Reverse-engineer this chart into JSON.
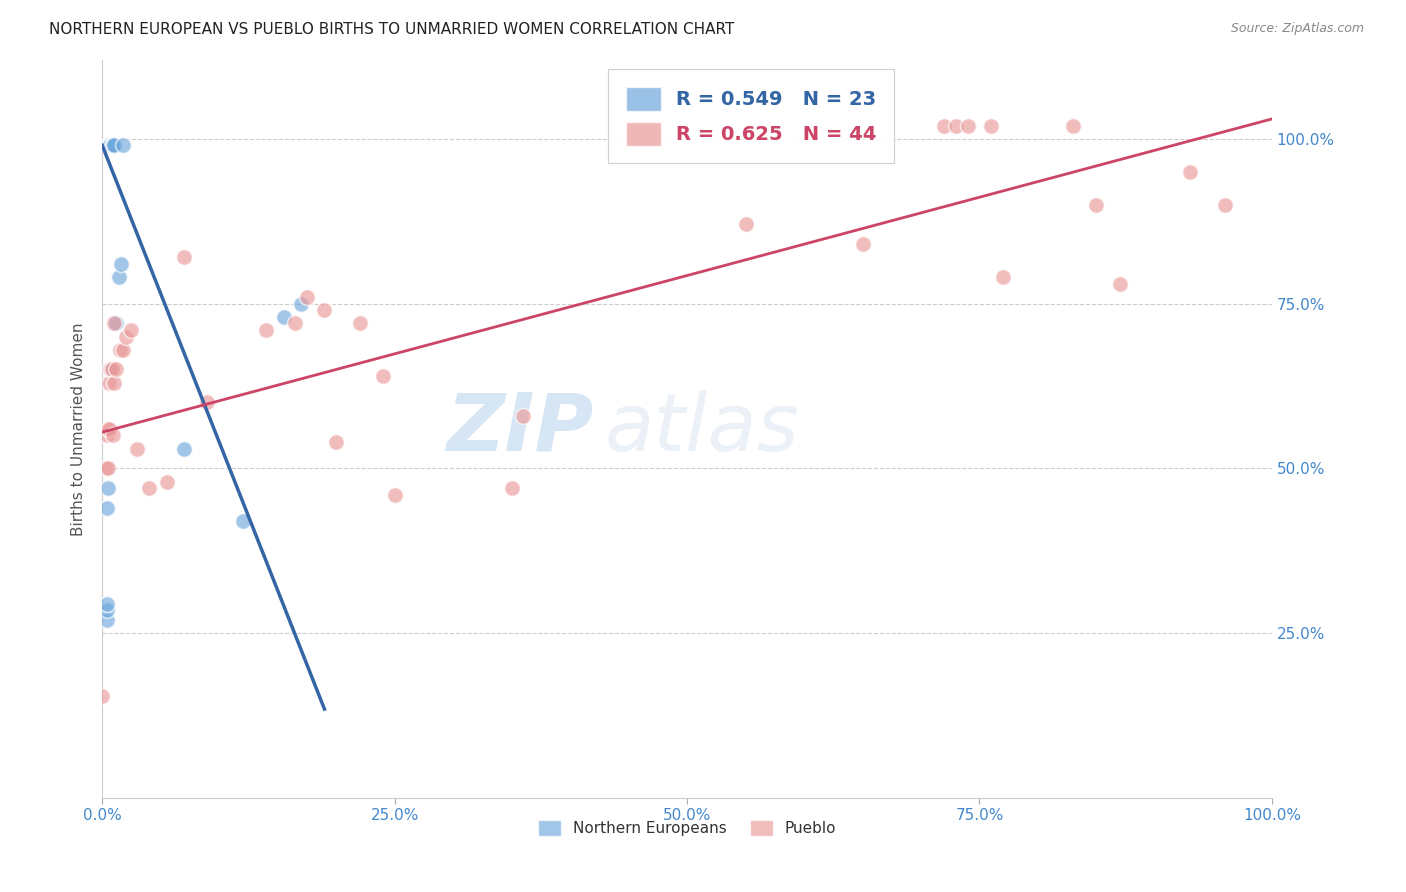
{
  "title": "NORTHERN EUROPEAN VS PUEBLO BIRTHS TO UNMARRIED WOMEN CORRELATION CHART",
  "source": "Source: ZipAtlas.com",
  "ylabel": "Births to Unmarried Women",
  "watermark": "ZIPatlas",
  "blue_label": "Northern Europeans",
  "pink_label": "Pueblo",
  "blue_R": 0.549,
  "blue_N": 23,
  "pink_R": 0.625,
  "pink_N": 44,
  "xlim": [
    0,
    1.0
  ],
  "ylim": [
    0,
    1.12
  ],
  "xticks": [
    0.0,
    0.25,
    0.5,
    0.75,
    1.0
  ],
  "xtick_labels": [
    "0.0%",
    "25.0%",
    "50.0%",
    "75.0%",
    "100.0%"
  ],
  "ytick_labels": [
    "25.0%",
    "50.0%",
    "75.0%",
    "100.0%"
  ],
  "yticks": [
    0.25,
    0.5,
    0.75,
    1.0
  ],
  "blue_color": "#6fa8dc",
  "pink_color": "#ea9999",
  "blue_line_color": "#3465a4",
  "pink_line_color": "#cc4466",
  "grid_color": "#cccccc",
  "axis_label_color": "#4488cc",
  "blue_x": [
    0.004,
    0.004,
    0.004,
    0.004,
    0.005,
    0.005,
    0.006,
    0.006,
    0.006,
    0.007,
    0.007,
    0.008,
    0.008,
    0.009,
    0.01,
    0.012,
    0.014,
    0.016,
    0.018,
    0.07,
    0.12,
    0.155,
    0.17
  ],
  "blue_y": [
    0.27,
    0.285,
    0.295,
    0.44,
    0.47,
    0.99,
    0.99,
    0.99,
    0.99,
    0.99,
    0.99,
    0.99,
    0.65,
    0.99,
    0.99,
    0.72,
    0.79,
    0.81,
    0.99,
    0.53,
    0.42,
    0.73,
    0.75
  ],
  "pink_x": [
    0.0,
    0.003,
    0.004,
    0.005,
    0.005,
    0.006,
    0.006,
    0.007,
    0.008,
    0.009,
    0.01,
    0.01,
    0.012,
    0.015,
    0.018,
    0.02,
    0.025,
    0.03,
    0.04,
    0.055,
    0.07,
    0.09,
    0.14,
    0.165,
    0.175,
    0.19,
    0.2,
    0.22,
    0.24,
    0.25,
    0.35,
    0.36,
    0.55,
    0.65,
    0.72,
    0.73,
    0.74,
    0.76,
    0.77,
    0.83,
    0.85,
    0.87,
    0.93,
    0.96
  ],
  "pink_y": [
    0.155,
    0.5,
    0.55,
    0.5,
    0.56,
    0.56,
    0.63,
    0.65,
    0.65,
    0.55,
    0.63,
    0.72,
    0.65,
    0.68,
    0.68,
    0.7,
    0.71,
    0.53,
    0.47,
    0.48,
    0.82,
    0.6,
    0.71,
    0.72,
    0.76,
    0.74,
    0.54,
    0.72,
    0.64,
    0.46,
    0.47,
    0.58,
    0.87,
    0.84,
    1.02,
    1.02,
    1.02,
    1.02,
    0.79,
    1.02,
    0.9,
    0.78,
    0.95,
    0.9
  ],
  "blue_line_x0": 0.0,
  "blue_line_y0": 0.99,
  "blue_line_x1": 0.19,
  "blue_line_y1": 0.135,
  "pink_line_x0": 0.0,
  "pink_line_y0": 0.555,
  "pink_line_x1": 1.0,
  "pink_line_y1": 1.03,
  "marker_size": 130,
  "figsize": [
    14.06,
    8.92
  ]
}
